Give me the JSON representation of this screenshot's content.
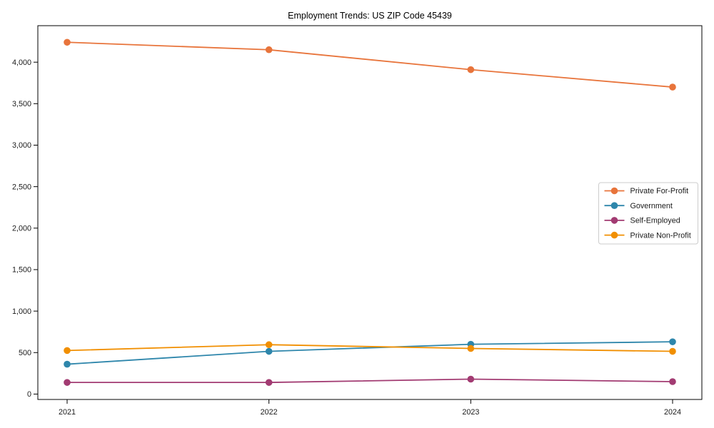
{
  "chart_data": {
    "type": "line",
    "title": "Employment Trends: US ZIP Code 45439",
    "xlabel": "",
    "ylabel": "",
    "grid": false,
    "marker": "circle",
    "legend_position": "center right",
    "x": [
      2021,
      2022,
      2023,
      2024
    ],
    "x_tick_labels": [
      "2021",
      "2022",
      "2023",
      "2024"
    ],
    "y_ticks": [
      0,
      500,
      1000,
      1500,
      2000,
      2500,
      3000,
      3500,
      4000
    ],
    "y_tick_labels": [
      "0",
      "500",
      "1,000",
      "1,500",
      "2,000",
      "2,500",
      "3,000",
      "3,500",
      "4,000"
    ],
    "ylim": [
      -65,
      4440
    ],
    "series": [
      {
        "name": "Private For-Profit",
        "color": "#E8743B",
        "values": [
          4240,
          4150,
          3910,
          3700
        ]
      },
      {
        "name": "Government",
        "color": "#2E86AB",
        "values": [
          360,
          515,
          600,
          630
        ]
      },
      {
        "name": "Self-Employed",
        "color": "#A23B72",
        "values": [
          140,
          140,
          180,
          150
        ]
      },
      {
        "name": "Private Non-Profit",
        "color": "#F18F01",
        "values": [
          525,
          595,
          550,
          515
        ]
      }
    ],
    "colors": {
      "spine": "#000000",
      "tick_text": "#1a1a1a",
      "legend_border": "#cccccc",
      "background": "#ffffff"
    }
  }
}
